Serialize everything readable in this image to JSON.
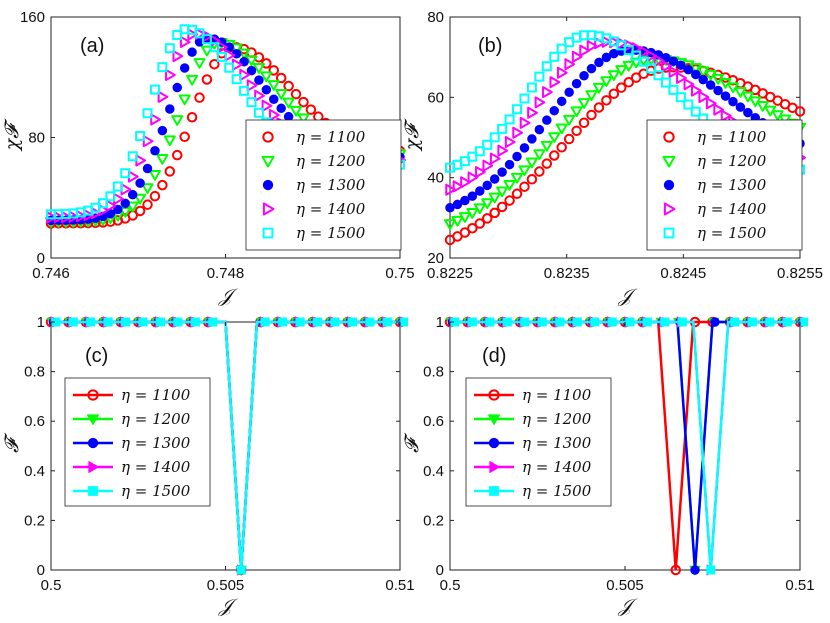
{
  "chart_data": [
    {
      "type": "scatter",
      "panel_label": "(a)",
      "title": "",
      "xlabel": "𝒥",
      "ylabel": "χ𝓕",
      "xlim": [
        0.746,
        0.75
      ],
      "ylim": [
        0,
        160
      ],
      "x_ticks": [
        "0.746",
        "0.748",
        "0.75"
      ],
      "y_ticks": [
        "0",
        "80",
        "160"
      ],
      "legend_position": "bottom-right",
      "series": [
        {
          "name": "η = 1100",
          "color": "#ff0000",
          "marker": "circle-open",
          "peak_x": 0.74808,
          "peak_y": 140,
          "y_left": 23,
          "y_right": 71,
          "width_left": 0.00065,
          "width_right": 0.00095
        },
        {
          "name": "η = 1200",
          "color": "#00ff00",
          "marker": "triangle-down-open",
          "peak_x": 0.74792,
          "peak_y": 143,
          "y_left": 24,
          "y_right": 69,
          "width_left": 0.00063,
          "width_right": 0.00092
        },
        {
          "name": "η = 1300",
          "color": "#0000ff",
          "marker": "circle-filled",
          "peak_x": 0.74779,
          "peak_y": 146,
          "y_left": 25,
          "y_right": 67,
          "width_left": 0.00061,
          "width_right": 0.0009
        },
        {
          "name": "η = 1400",
          "color": "#ff00ff",
          "marker": "triangle-right-open",
          "peak_x": 0.74766,
          "peak_y": 149,
          "y_left": 27,
          "y_right": 65,
          "width_left": 0.00059,
          "width_right": 0.00088
        },
        {
          "name": "η = 1500",
          "color": "#00ffff",
          "marker": "square-open",
          "peak_x": 0.74755,
          "peak_y": 152,
          "y_left": 29,
          "y_right": 62,
          "width_left": 0.00057,
          "width_right": 0.00085
        }
      ]
    },
    {
      "type": "scatter",
      "panel_label": "(b)",
      "title": "",
      "xlabel": "𝒥",
      "ylabel": "χ𝓕",
      "xlim": [
        0.8225,
        0.8255
      ],
      "ylim": [
        20,
        80
      ],
      "x_ticks": [
        "0.8225",
        "0.8235",
        "0.8245",
        "0.8255"
      ],
      "y_ticks": [
        "20",
        "40",
        "60",
        "80"
      ],
      "legend_position": "bottom-right",
      "series": [
        {
          "name": "η = 1100",
          "color": "#ff0000",
          "marker": "circle-open",
          "peak_x": 0.8244,
          "peak_y": 67.5,
          "y_left": 24.5,
          "y_right": 56.5,
          "width_left": 0.0013,
          "width_right": 0.0013
        },
        {
          "name": "η = 1200",
          "color": "#00ff00",
          "marker": "triangle-down-open",
          "peak_x": 0.82425,
          "peak_y": 69.5,
          "y_left": 28.5,
          "y_right": 52.5,
          "width_left": 0.00115,
          "width_right": 0.0012
        },
        {
          "name": "η = 1300",
          "color": "#0000ff",
          "marker": "circle-filled",
          "peak_x": 0.82405,
          "peak_y": 71.8,
          "y_left": 32.5,
          "y_right": 48.5,
          "width_left": 0.001,
          "width_right": 0.00115
        },
        {
          "name": "η = 1400",
          "color": "#ff00ff",
          "marker": "triangle-right-open",
          "peak_x": 0.82385,
          "peak_y": 73.8,
          "y_left": 37,
          "y_right": 45,
          "width_left": 0.00085,
          "width_right": 0.0011
        },
        {
          "name": "η = 1500",
          "color": "#00ffff",
          "marker": "square-open",
          "peak_x": 0.82368,
          "peak_y": 75.5,
          "y_left": 42.5,
          "y_right": 42,
          "width_left": 0.0007,
          "width_right": 0.00105
        }
      ]
    },
    {
      "type": "line",
      "panel_label": "(c)",
      "title": "",
      "xlabel": "𝒥",
      "ylabel": "𝓕",
      "xlim": [
        0.5,
        0.51
      ],
      "ylim": [
        0,
        1
      ],
      "x_ticks": [
        "0.5",
        "0.505",
        "0.51"
      ],
      "y_ticks": [
        "0",
        "0.2",
        "0.4",
        "0.6",
        "0.8",
        "1"
      ],
      "legend_position": "middle-left",
      "grid": false,
      "dip_x": 0.50545,
      "dip_half_width": 0.00045,
      "series": [
        {
          "name": "η = 1100",
          "color": "#ff0000",
          "marker": "circle-open",
          "dip_x": 0.50545
        },
        {
          "name": "η = 1200",
          "color": "#00ff00",
          "marker": "triangle-down-filled",
          "dip_x": 0.50545
        },
        {
          "name": "η = 1300",
          "color": "#0000ff",
          "marker": "circle-filled",
          "dip_x": 0.50545
        },
        {
          "name": "η = 1400",
          "color": "#ff00ff",
          "marker": "triangle-right-filled",
          "dip_x": 0.50545
        },
        {
          "name": "η = 1500",
          "color": "#00ffff",
          "marker": "square-filled",
          "dip_x": 0.50545
        }
      ]
    },
    {
      "type": "line",
      "panel_label": "(d)",
      "title": "",
      "xlabel": "𝒥",
      "ylabel": "𝓕",
      "xlim": [
        0.5,
        0.51
      ],
      "ylim": [
        0,
        1
      ],
      "x_ticks": [
        "0.5",
        "0.505",
        "0.51"
      ],
      "y_ticks": [
        "0",
        "0.2",
        "0.4",
        "0.6",
        "0.8",
        "1"
      ],
      "legend_position": "middle-left",
      "grid": false,
      "dip_half_width": 0.0005,
      "series": [
        {
          "name": "η = 1100",
          "color": "#ff0000",
          "marker": "circle-open",
          "dip_x": 0.50645
        },
        {
          "name": "η = 1200",
          "color": "#00ff00",
          "marker": "triangle-down-filled",
          "dip_x": 0.507
        },
        {
          "name": "η = 1300",
          "color": "#0000ff",
          "marker": "circle-filled",
          "dip_x": 0.507
        },
        {
          "name": "η = 1400",
          "color": "#ff00ff",
          "marker": "triangle-right-filled",
          "dip_x": 0.50745
        },
        {
          "name": "η = 1500",
          "color": "#00ffff",
          "marker": "square-filled",
          "dip_x": 0.50745
        }
      ]
    }
  ]
}
